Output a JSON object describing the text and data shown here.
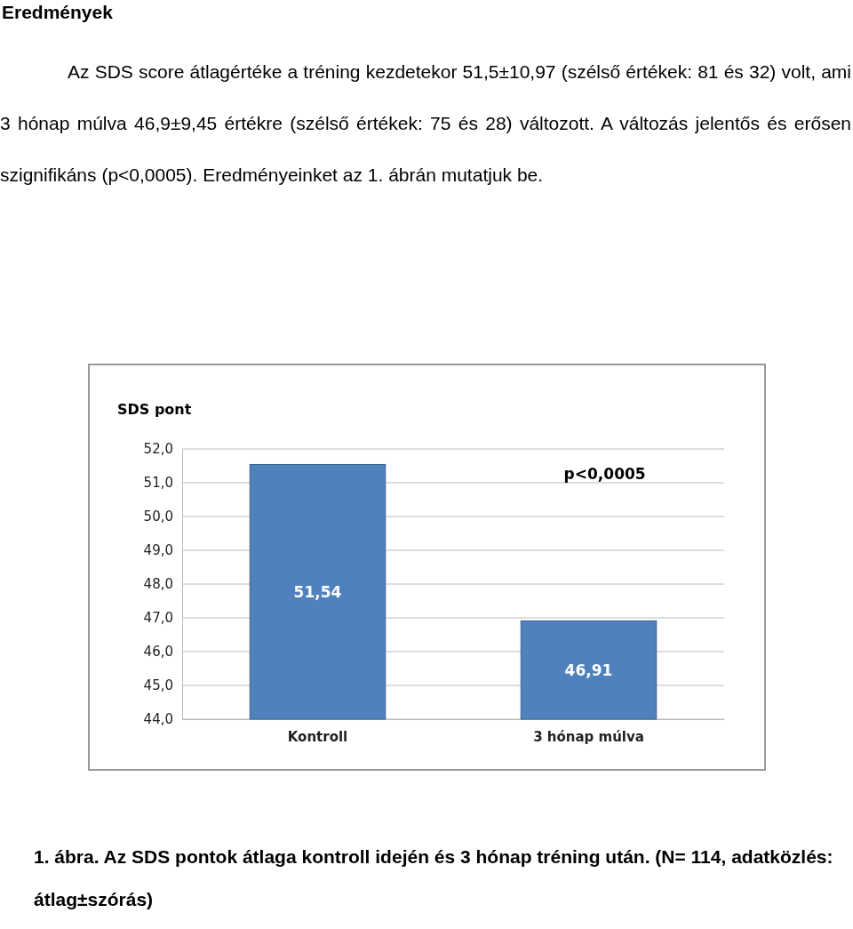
{
  "chart_data": {
    "type": "bar",
    "title": "Eredmények",
    "subtitle": "Az SDS score átlagértéke a tréning kezdetekor 51,5±10,97 (szélső értékek: 81 és 32) volt, ami 3 hónap múlva 46,9±9,45 értékre (szélső értékek: 75 és 28) változott. A változás jelentős és erősen szignifikáns (p<0,0005). Eredményeinket az 1. ábrán mutatjuk be.",
    "ylabel": "SDS pont",
    "categories": [
      "Kontroll",
      "3 hónap múlva"
    ],
    "values": [
      51.54,
      46.91
    ],
    "value_labels": [
      "51,54",
      "46,91"
    ],
    "color": "#4f81bd",
    "ylim": [
      44,
      52
    ],
    "yticks": [
      {
        "value": 44,
        "label": "44,0"
      },
      {
        "value": 45,
        "label": "45,0"
      },
      {
        "value": 46,
        "label": "46,0"
      },
      {
        "value": 47,
        "label": "47,0"
      },
      {
        "value": 48,
        "label": "48,0"
      },
      {
        "value": 49,
        "label": "49,0"
      },
      {
        "value": 50,
        "label": "50,0"
      },
      {
        "value": 51,
        "label": "51,0"
      },
      {
        "value": 52,
        "label": "52,0"
      }
    ],
    "grid": "y",
    "annotations": [
      "p<0,0005",
      "1. ábra. Az SDS pontok átlaga kontroll idején és 3 hónap tréning után. (N= 114, adatközlés: átlag±szórás)"
    ]
  }
}
